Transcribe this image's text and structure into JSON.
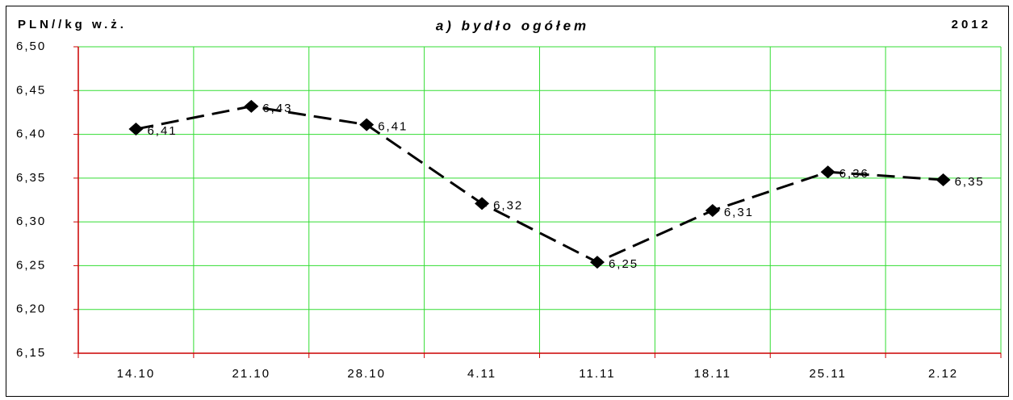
{
  "chart_data": {
    "type": "line",
    "title": "a) bydło ogółem",
    "y_axis_label": "PLN//kg w.ż.",
    "annotation": "2012",
    "categories": [
      "14.10",
      "21.10",
      "28.10",
      "4.11",
      "11.11",
      "18.11",
      "25.11",
      "2.12"
    ],
    "values": [
      6.406,
      6.432,
      6.411,
      6.321,
      6.254,
      6.313,
      6.357,
      6.348
    ],
    "value_labels": [
      "6,41",
      "6,43",
      "6,41",
      "6,32",
      "6,25",
      "6,31",
      "6,36",
      "6,35"
    ],
    "color": "#000000",
    "ylim": [
      6.15,
      6.5
    ],
    "yticks": [
      {
        "value": 6.15,
        "label": "6,15"
      },
      {
        "value": 6.2,
        "label": "6,20"
      },
      {
        "value": 6.25,
        "label": "6,25"
      },
      {
        "value": 6.3,
        "label": "6,30"
      },
      {
        "value": 6.35,
        "label": "6,35"
      },
      {
        "value": 6.4,
        "label": "6,40"
      },
      {
        "value": 6.45,
        "label": "6,45"
      },
      {
        "value": 6.5,
        "label": "6,50"
      }
    ],
    "grid": true
  }
}
